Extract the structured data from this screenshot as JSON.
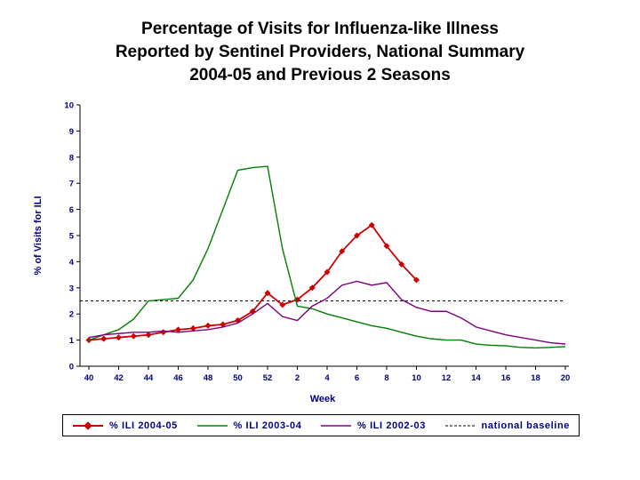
{
  "title": "Percentage of Visits for Influenza-like Illness\nReported by Sentinel Providers, National Summary\n2004-05 and Previous 2 Seasons",
  "chart_data": {
    "type": "line",
    "title": "Percentage of Visits for Influenza-like Illness Reported by Sentinel Providers, National Summary 2004-05 and Previous 2 Seasons",
    "xlabel": "Week",
    "ylabel": "% of Visits for ILI",
    "ylim": [
      0,
      10
    ],
    "yticks": [
      0,
      1,
      2,
      3,
      4,
      5,
      6,
      7,
      8,
      9,
      10
    ],
    "x_tick_labels": [
      "40",
      "42",
      "44",
      "46",
      "48",
      "50",
      "52",
      "2",
      "4",
      "6",
      "8",
      "10",
      "12",
      "14",
      "16",
      "18",
      "20"
    ],
    "weeks": [
      40,
      41,
      42,
      43,
      44,
      45,
      46,
      47,
      48,
      49,
      50,
      51,
      52,
      1,
      2,
      3,
      4,
      5,
      6,
      7,
      8,
      9,
      10,
      11,
      12,
      13,
      14,
      15,
      16,
      17,
      18,
      19,
      20
    ],
    "grid": false,
    "legend_position": "bottom",
    "baseline": {
      "label": "national baseline",
      "value": 2.5,
      "color": "#000000",
      "style": "dashed"
    },
    "series": [
      {
        "name": "% ILI 2004-05",
        "color": "#CC0000",
        "marker": "diamond",
        "values": [
          1.0,
          1.05,
          1.1,
          1.15,
          1.2,
          1.3,
          1.4,
          1.45,
          1.55,
          1.6,
          1.75,
          2.1,
          2.8,
          2.35,
          2.55,
          3.0,
          3.6,
          4.4,
          5.0,
          5.4,
          4.6,
          3.9,
          3.3
        ]
      },
      {
        "name": "% ILI 2003-04",
        "color": "#008000",
        "marker": "none",
        "values": [
          1.0,
          1.2,
          1.4,
          1.8,
          2.5,
          2.55,
          2.6,
          3.3,
          4.5,
          6.0,
          7.5,
          7.6,
          7.65,
          4.5,
          2.3,
          2.2,
          2.0,
          1.85,
          1.7,
          1.55,
          1.45,
          1.3,
          1.15,
          1.05,
          1.0,
          1.0,
          0.85,
          0.8,
          0.78,
          0.72,
          0.7,
          0.72,
          0.75
        ]
      },
      {
        "name": "% ILI 2002-03",
        "color": "#800080",
        "marker": "none",
        "values": [
          1.1,
          1.2,
          1.25,
          1.3,
          1.3,
          1.35,
          1.3,
          1.35,
          1.4,
          1.5,
          1.65,
          2.0,
          2.4,
          1.9,
          1.75,
          2.3,
          2.6,
          3.1,
          3.25,
          3.1,
          3.2,
          2.55,
          2.25,
          2.1,
          2.1,
          1.85,
          1.5,
          1.35,
          1.2,
          1.1,
          1.0,
          0.9,
          0.85
        ]
      }
    ]
  }
}
